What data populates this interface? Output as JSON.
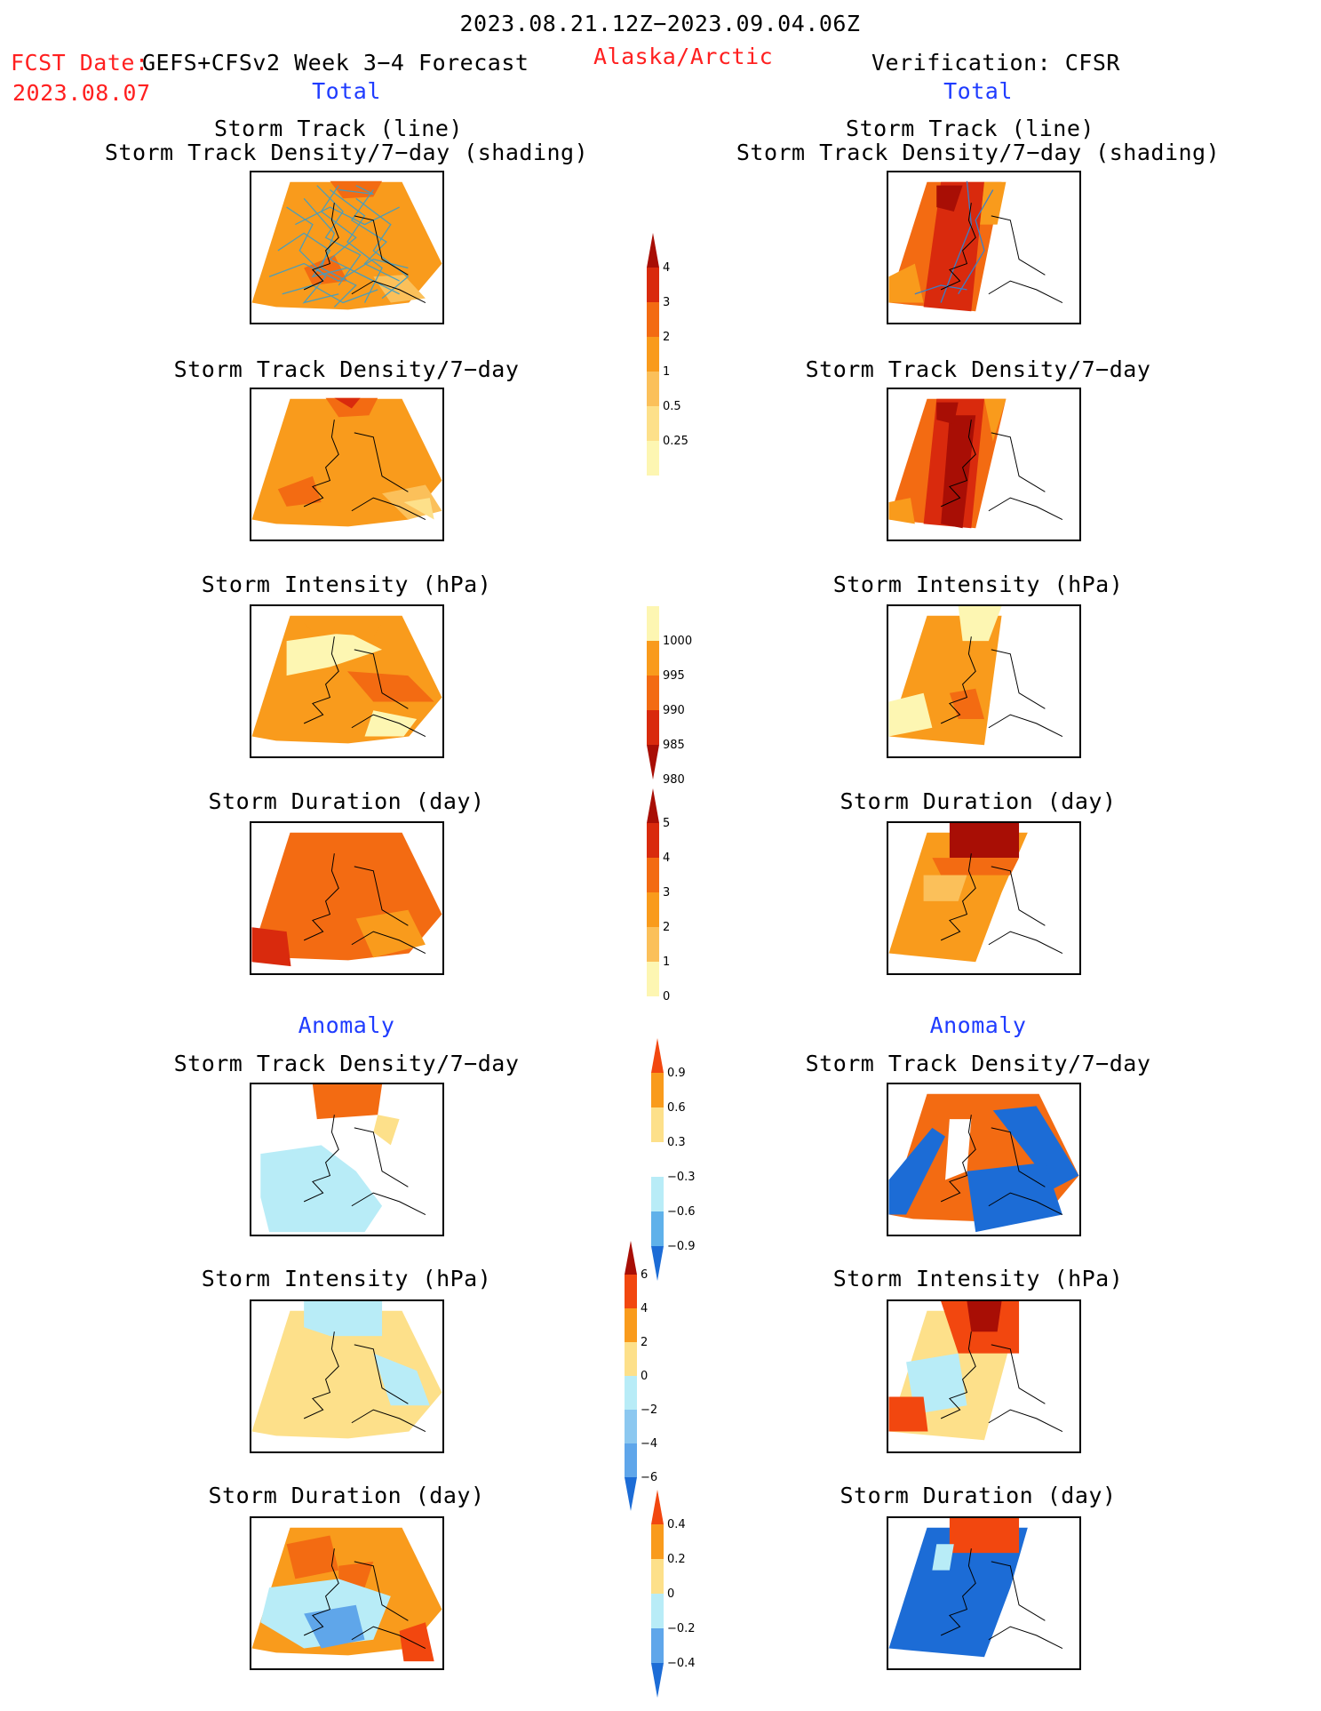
{
  "header": {
    "date_range": "2023.08.21.12Z−2023.09.04.06Z",
    "fcst_label": "FCST Date:",
    "fcst_date": "2023.08.07",
    "model": "GEFS+CFSv2 Week 3−4 Forecast",
    "region": "Alaska/Arctic",
    "verification": "Verification: CFSR"
  },
  "sections": {
    "total": "Total",
    "anomaly": "Anomaly"
  },
  "panel_titles": {
    "track_line": "Storm Track (line)",
    "track_shading": "Storm Track Density/7−day (shading)",
    "density": "Storm Track Density/7−day",
    "intensity": "Storm Intensity (hPa)",
    "duration": "Storm Duration (day)"
  },
  "colorbars": {
    "density": {
      "labels": [
        "0.25",
        "0.5",
        "1",
        "2",
        "3",
        "4"
      ],
      "colors": [
        "#fdf6b2",
        "#fde08a",
        "#fbc05a",
        "#f99b1c",
        "#f36b12",
        "#d92a0d",
        "#a80e05"
      ]
    },
    "intensity": {
      "labels": [
        "1000",
        "995",
        "990",
        "985",
        "980"
      ],
      "colors": [
        "#fdf6b2",
        "#f99b1c",
        "#f36b12",
        "#d92a0d",
        "#a80e05"
      ]
    },
    "duration": {
      "labels": [
        "0",
        "1",
        "2",
        "3",
        "4",
        "5"
      ],
      "colors": [
        "#fdf6b2",
        "#fbc05a",
        "#f99b1c",
        "#f36b12",
        "#d92a0d",
        "#a80e05"
      ]
    },
    "anom_density": {
      "labels": [
        "0.9",
        "0.6",
        "0.3",
        "−0.3",
        "−0.6",
        "−0.9"
      ],
      "colors": [
        "#f2470f",
        "#f99b1c",
        "#fde08a",
        "#ffffff",
        "#b8ecf7",
        "#5fb1ea",
        "#1c6cd6"
      ]
    },
    "anom_intensity": {
      "labels": [
        "6",
        "4",
        "2",
        "0",
        "−2",
        "−4",
        "−6"
      ],
      "colors": [
        "#a80e05",
        "#f2470f",
        "#f99b1c",
        "#fde08a",
        "#b8ecf7",
        "#8cc8f0",
        "#5fa6ea",
        "#1c6cd6"
      ]
    },
    "anom_duration": {
      "labels": [
        "0.4",
        "0.2",
        "0",
        "−0.2",
        "−0.4"
      ],
      "colors": [
        "#f2470f",
        "#f99b1c",
        "#fde08a",
        "#b8ecf7",
        "#5fa6ea",
        "#1c6cd6"
      ]
    }
  }
}
